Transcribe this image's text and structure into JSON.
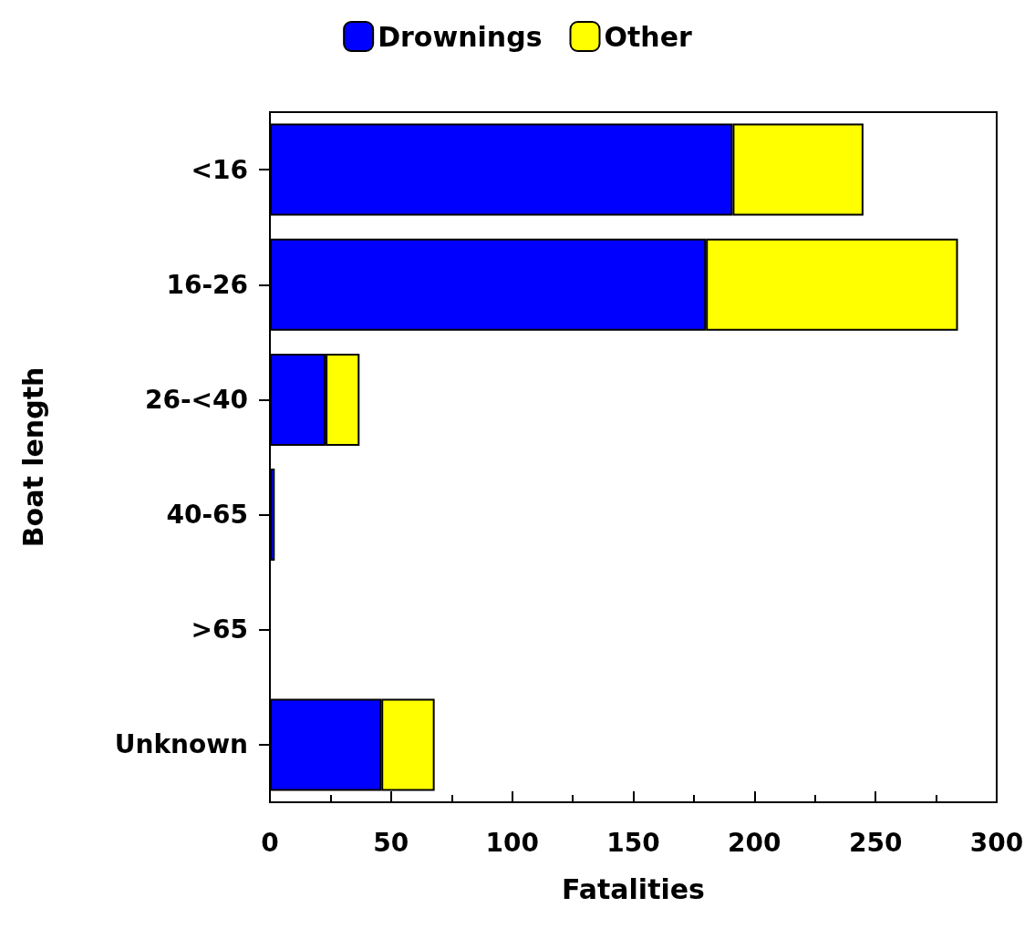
{
  "chart_data": {
    "type": "bar",
    "orientation": "horizontal",
    "stacked": true,
    "xlabel": "Fatalities",
    "ylabel": "Boat length",
    "categories": [
      "<16",
      "16-26",
      "26-<40",
      "40-65",
      ">65",
      "Unknown"
    ],
    "series": [
      {
        "name": "Drownings",
        "color": "#0000ff",
        "values": [
          191,
          180,
          23,
          2,
          0,
          46
        ]
      },
      {
        "name": "Other",
        "color": "#ffff00",
        "values": [
          54,
          104,
          14,
          0,
          0,
          22
        ]
      }
    ],
    "xlim": [
      0,
      300
    ],
    "xticks": [
      0,
      50,
      100,
      150,
      200,
      250,
      300
    ],
    "grid": false,
    "legend": "top"
  }
}
